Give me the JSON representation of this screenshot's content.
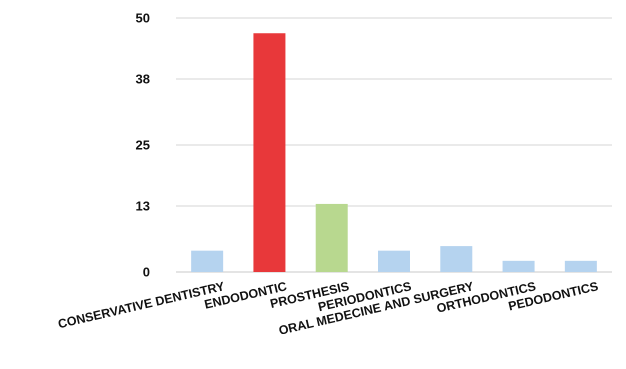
{
  "chart_data": {
    "type": "bar",
    "title": "",
    "xlabel": "",
    "ylabel": "",
    "categories": [
      "CONSERVATIVE DENTISTRY",
      "ENDODONTIC",
      "PROSTHESIS",
      "PERIODONTICS",
      "ORAL MEDECINE AND SURGERY",
      "ORTHODONTICS",
      "PEDODONTICS"
    ],
    "values": [
      4.2,
      47,
      13.4,
      4.2,
      5.1,
      2.2,
      2.2
    ],
    "bar_colors": [
      "#b5d3ef",
      "#e8383a",
      "#b8d88f",
      "#b5d3ef",
      "#b5d3ef",
      "#b5d3ef",
      "#b5d3ef"
    ],
    "ylim": [
      0,
      50
    ],
    "yticks": [
      "0",
      "13",
      "25",
      "38",
      "50"
    ],
    "grid": true,
    "legend": "none"
  }
}
